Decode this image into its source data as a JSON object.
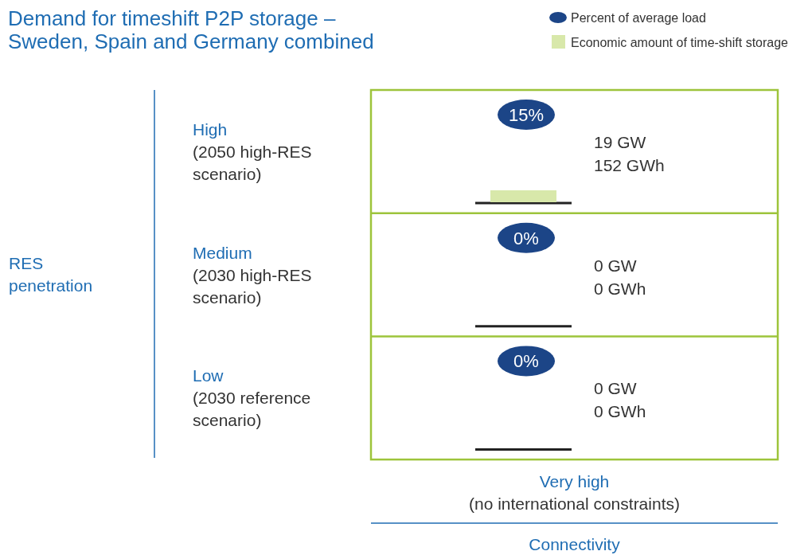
{
  "chart_data": {
    "type": "other",
    "title": "Demand for timeshift P2P storage –\nSweden, Spain and Germany combined",
    "ylabel": "RES\npenetration",
    "xlabel": "Connectivity",
    "annotations": [
      "Very high\n(no international constraints)"
    ],
    "categories": [
      "High\n(2050 high-RES\nscenario)",
      "Medium\n(2030 high-RES\nscenario)",
      "Low\n(2030 reference\nscenario)"
    ],
    "legend": "top right",
    "series": [
      {
        "type": "scatter",
        "name": "Percent of average load",
        "color": "#1c4587",
        "values": [
          15,
          0,
          0
        ],
        "value_labels": [
          "15%",
          "0%",
          "0%"
        ]
      },
      {
        "type": "other",
        "color": "#333333",
        "values": [
          19,
          0,
          0
        ],
        "value_labels": [
          "19 GW",
          "0 GW",
          "0 GW"
        ]
      },
      {
        "type": "bar",
        "name": "Economic amount of time-shift storage",
        "color": "#d8e8aa",
        "values": [
          152,
          0,
          0
        ],
        "value_labels": [
          "152 GWh",
          "0 GWh",
          "0 GWh"
        ]
      }
    ]
  }
}
